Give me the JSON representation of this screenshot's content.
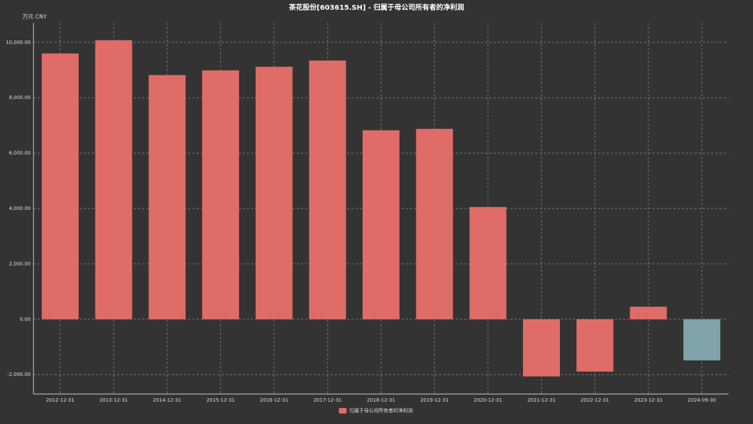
{
  "chart_data": {
    "type": "bar",
    "title": "茶花股份[603615.SH] - 归属于母公司所有者的净利润",
    "unit_label": "万元  CNY",
    "categories": [
      "2012-12-31",
      "2013-12-31",
      "2014-12-31",
      "2015-12-31",
      "2016-12-31",
      "2017-12-31",
      "2018-12-31",
      "2019-12-31",
      "2020-12-31",
      "2021-12-31",
      "2022-12-31",
      "2023-12-31",
      "2024-09-30"
    ],
    "series": [
      {
        "name": "归属于母公司所有者的净利润",
        "color": "#e06c67",
        "values": [
          9600,
          10080,
          8820,
          8990,
          9120,
          9345,
          6826,
          6877,
          4055,
          -2065,
          -1890,
          453,
          -1486
        ],
        "colors": [
          "#e06c67",
          "#e06c67",
          "#e06c67",
          "#e06c67",
          "#e06c67",
          "#e06c67",
          "#e06c67",
          "#e06c67",
          "#e06c67",
          "#e06c67",
          "#e06c67",
          "#e06c67",
          "#7fa3a8"
        ]
      }
    ],
    "ylim": [
      -2700,
      10700
    ],
    "yticks": [
      {
        "value": -2000,
        "label": "-2,000.00"
      },
      {
        "value": 0,
        "label": "0.00"
      },
      {
        "value": 2000,
        "label": "2,000.00"
      },
      {
        "value": 4000,
        "label": "4,000.00"
      },
      {
        "value": 6000,
        "label": "6,000.00"
      },
      {
        "value": 8000,
        "label": "8,000.00"
      },
      {
        "value": 10000,
        "label": "10,000.00"
      }
    ],
    "grid": true
  }
}
